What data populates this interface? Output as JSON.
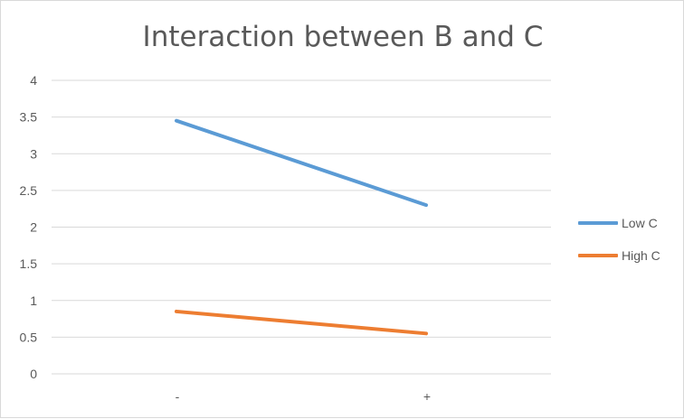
{
  "chart_data": {
    "type": "line",
    "title": "Interaction between B and C",
    "xlabel": "",
    "ylabel": "",
    "categories": [
      "-",
      "+"
    ],
    "ylim": [
      0,
      4
    ],
    "yticks": [
      "0",
      "0.5",
      "1",
      "1.5",
      "2",
      "2.5",
      "3",
      "3.5",
      "4"
    ],
    "grid": true,
    "legend_position": "right",
    "series": [
      {
        "name": "Low C",
        "values": [
          3.45,
          2.3
        ],
        "color": "#5b9bd5"
      },
      {
        "name": "High C",
        "values": [
          0.85,
          0.55
        ],
        "color": "#ed7d31"
      }
    ]
  }
}
